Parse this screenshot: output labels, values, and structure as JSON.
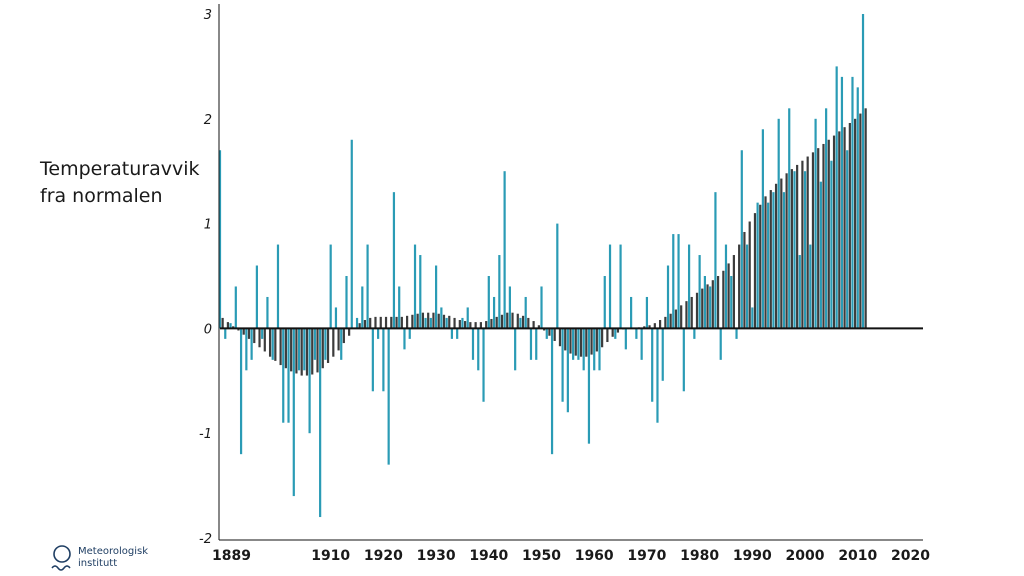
{
  "chart_data": {
    "type": "bar",
    "ylabel_lines": [
      "Temperaturavvik",
      "fra normalen"
    ],
    "ylim": [
      -2,
      3
    ],
    "yticks": [
      "3",
      "2",
      "1",
      "0",
      "-1",
      "-2"
    ],
    "xticks": [
      "1889",
      "1910",
      "1920",
      "1930",
      "1940",
      "1950",
      "1960",
      "1970",
      "1980",
      "1990",
      "2000",
      "2010",
      "2020"
    ],
    "x_start": 1889,
    "x_end": 2022,
    "colors": {
      "annual": "#2a9bb5",
      "smoothed": "#3c3c3c",
      "axis": "#111111"
    },
    "series": [
      {
        "values": [
          1.7,
          -0.1,
          0.05,
          0.4,
          -1.2,
          -0.4,
          -0.3,
          0.6,
          -0.1,
          0.3,
          -0.3,
          0.8,
          -0.9,
          -0.9,
          -1.6,
          -0.4,
          -0.4,
          -1.0,
          -0.3,
          -1.8,
          -0.3,
          0.8,
          0.2,
          -0.3,
          0.5,
          1.8,
          0.1,
          0.4,
          0.8,
          -0.6,
          -0.1,
          -0.6,
          -1.3,
          1.3,
          0.4,
          -0.2,
          -0.1,
          0.8,
          0.7,
          0.1,
          0.1,
          0.6,
          0.2,
          0.1,
          -0.1,
          -0.1,
          0.1,
          0.2,
          -0.3,
          -0.4,
          -0.7,
          0.5,
          0.3,
          0.7,
          1.5,
          0.4,
          -0.4,
          0.1,
          0.3,
          -0.3,
          -0.3,
          0.4,
          -0.1,
          -1.2,
          1.0,
          -0.7,
          -0.8,
          -0.3,
          -0.3,
          -0.4,
          -1.1,
          -0.4,
          -0.4,
          0.5,
          0.8,
          -0.1,
          0.8,
          -0.2,
          0.3,
          -0.1,
          -0.3,
          0.3,
          -0.7,
          -0.9,
          -0.5,
          0.6,
          0.9,
          0.9,
          -0.6,
          0.8,
          -0.1,
          0.7,
          0.5,
          0.4,
          1.3,
          -0.3,
          0.8,
          0.5,
          -0.1,
          1.7,
          0.8,
          0.2,
          1.2,
          1.9,
          1.2,
          1.3,
          2.0,
          1.3,
          2.1,
          1.5,
          0.7,
          1.5,
          0.8,
          2.0,
          1.4,
          2.1,
          1.6,
          2.5,
          2.4,
          1.7,
          2.4,
          2.3,
          3.0
        ]
      },
      {
        "values": [
          0.1,
          0.06,
          0.02,
          -0.02,
          -0.06,
          -0.1,
          -0.14,
          -0.18,
          -0.22,
          -0.27,
          -0.31,
          -0.35,
          -0.38,
          -0.41,
          -0.43,
          -0.45,
          -0.45,
          -0.44,
          -0.42,
          -0.38,
          -0.33,
          -0.27,
          -0.21,
          -0.14,
          -0.07,
          0.0,
          0.05,
          0.08,
          0.1,
          0.11,
          0.11,
          0.11,
          0.11,
          0.11,
          0.11,
          0.12,
          0.13,
          0.14,
          0.15,
          0.15,
          0.15,
          0.14,
          0.13,
          0.12,
          0.1,
          0.08,
          0.07,
          0.06,
          0.06,
          0.06,
          0.07,
          0.09,
          0.11,
          0.13,
          0.15,
          0.15,
          0.14,
          0.12,
          0.1,
          0.07,
          0.03,
          -0.02,
          -0.07,
          -0.12,
          -0.17,
          -0.21,
          -0.24,
          -0.26,
          -0.27,
          -0.27,
          -0.25,
          -0.22,
          -0.18,
          -0.13,
          -0.08,
          -0.04,
          -0.01,
          0.0,
          0.0,
          0.01,
          0.02,
          0.03,
          0.05,
          0.08,
          0.11,
          0.14,
          0.18,
          0.22,
          0.26,
          0.3,
          0.34,
          0.38,
          0.42,
          0.46,
          0.5,
          0.55,
          0.62,
          0.7,
          0.8,
          0.92,
          1.02,
          1.1,
          1.18,
          1.26,
          1.32,
          1.38,
          1.43,
          1.48,
          1.52,
          1.56,
          1.6,
          1.64,
          1.68,
          1.72,
          1.76,
          1.8,
          1.84,
          1.88,
          1.92,
          1.96,
          2.0,
          2.05,
          2.1
        ]
      }
    ]
  },
  "logo": {
    "line1": "Meteorologisk",
    "line2": "institutt"
  }
}
